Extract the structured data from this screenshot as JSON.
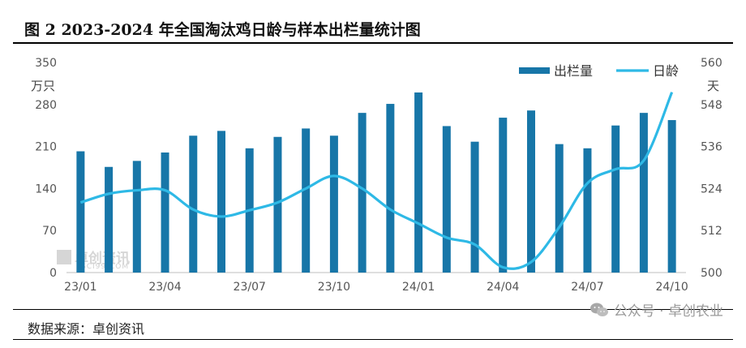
{
  "figure": {
    "title": "图 2 2023-2024 年全国淘汰鸡日龄与样本出栏量统计图",
    "source": "数据来源：卓创资讯",
    "wechat_label": "公众号 · 卓创农业",
    "watermark": "卓创资讯",
    "watermark_sub": "SCI99.COM"
  },
  "chart_data": {
    "type": "bar+line",
    "title": "图 2 2023-2024 年全国淘汰鸡日龄与样本出栏量统计图",
    "left_axis": {
      "unit": "万只",
      "ticks": [
        0,
        70,
        140,
        210,
        280,
        350
      ],
      "range": [
        0,
        350
      ]
    },
    "right_axis": {
      "unit": "天",
      "ticks": [
        500,
        512,
        524,
        536,
        548,
        560
      ],
      "range": [
        500,
        560
      ]
    },
    "x_tick_labels": [
      "23/01",
      "23/04",
      "23/07",
      "23/10",
      "24/01",
      "24/04",
      "24/07",
      "24/10"
    ],
    "categories": [
      "23/01",
      "23/02",
      "23/03",
      "23/04",
      "23/05",
      "23/06",
      "23/07",
      "23/08",
      "23/09",
      "23/10",
      "23/11",
      "23/12",
      "24/01",
      "24/02",
      "24/03",
      "24/04",
      "24/05",
      "24/06",
      "24/07",
      "24/08",
      "24/09",
      "24/10"
    ],
    "series": [
      {
        "name": "出栏量",
        "kind": "bar",
        "axis": "left",
        "color": "#1776a8",
        "values": [
          202,
          176,
          186,
          200,
          228,
          236,
          207,
          226,
          240,
          228,
          266,
          281,
          300,
          244,
          218,
          258,
          270,
          214,
          207,
          245,
          266,
          254
        ]
      },
      {
        "name": "日龄",
        "kind": "line",
        "axis": "right",
        "color": "#2eb9e6",
        "values": [
          520.0,
          522.5,
          523.5,
          523.5,
          518.0,
          516.0,
          517.8,
          520.0,
          524.0,
          527.6,
          524.0,
          518.0,
          514.0,
          510.0,
          508.0,
          501.5,
          503.0,
          513.0,
          525.5,
          529.5,
          532.0,
          551.5
        ]
      }
    ],
    "legend_position": "top-right",
    "grid": false
  }
}
